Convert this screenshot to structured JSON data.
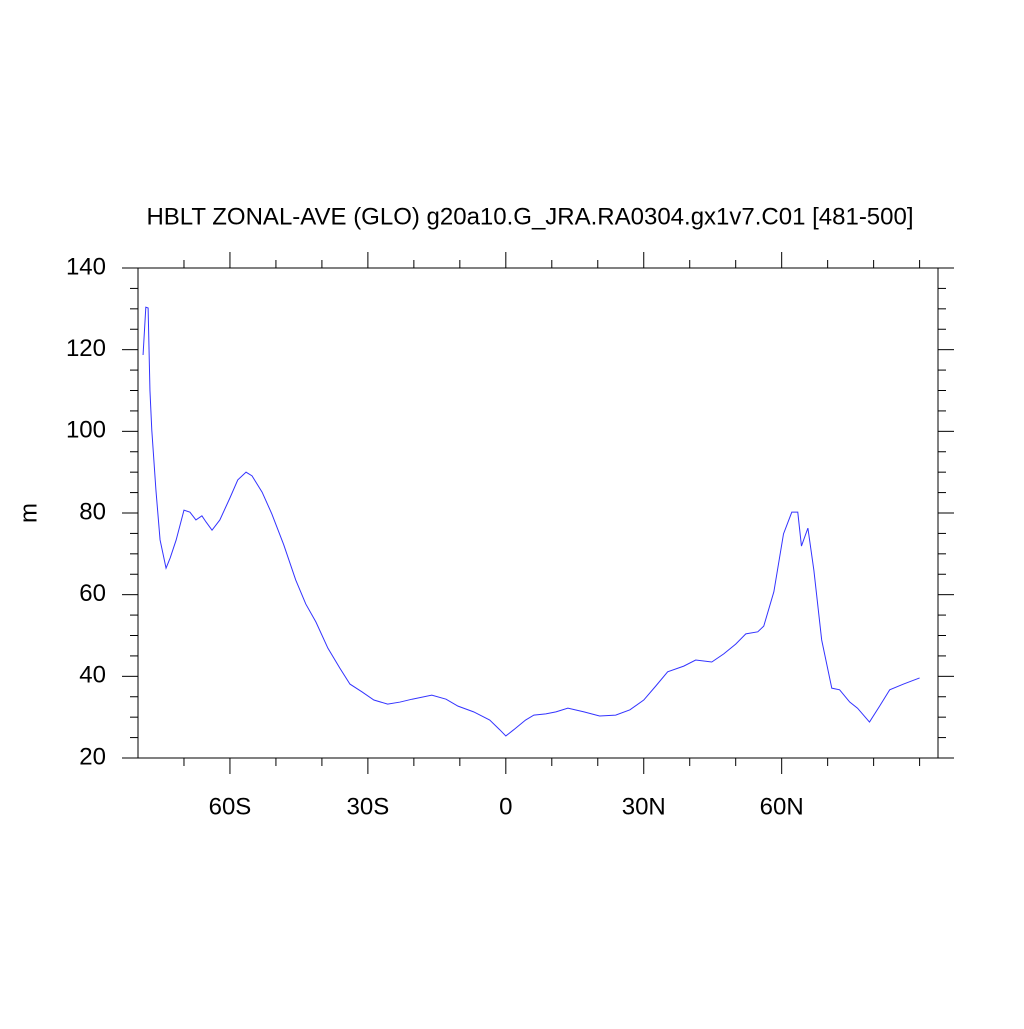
{
  "chart_data": {
    "type": "line",
    "title": "HBLT ZONAL-AVE (GLO) g20a10.G_JRA.RA0304.gx1v7.C01 [481-500]",
    "y_label": "m",
    "x": [
      -78.9,
      -78.3,
      -77.8,
      -77.4,
      -77,
      -76.1,
      -75.2,
      -73.9,
      -73,
      -71.7,
      -70,
      -68.7,
      -67.4,
      -66.1,
      -65.2,
      -63.9,
      -62.2,
      -60,
      -58.3,
      -56.5,
      -55.2,
      -53,
      -50.9,
      -48.3,
      -45.7,
      -43.5,
      -41.3,
      -38.7,
      -36.1,
      -33.9,
      -31.3,
      -28.7,
      -25.7,
      -23,
      -20.4,
      -16.1,
      -13,
      -10.4,
      -7,
      -3.5,
      -1.3,
      0,
      1.7,
      4.3,
      6.1,
      8.7,
      10.9,
      13.5,
      17,
      20.4,
      23.9,
      27,
      30,
      32.6,
      35.2,
      38.7,
      41.3,
      44.8,
      47.4,
      50,
      52.2,
      54.8,
      56.1,
      58.3,
      60.4,
      62.2,
      63.5,
      64.3,
      65.7,
      67,
      68.7,
      70.9,
      72.6,
      74.8,
      76.5,
      79.1,
      81.3,
      83.5,
      86.5,
      90
    ],
    "series": [
      {
        "color": "#3333ff",
        "values": [
          118.7,
          130.4,
          130.2,
          110,
          100.3,
          85.6,
          73.4,
          66.5,
          69,
          73.4,
          80.7,
          80.2,
          78.3,
          79.3,
          77.8,
          75.8,
          78.3,
          83.7,
          88.1,
          90,
          89.1,
          85.1,
          79.8,
          72.2,
          63.6,
          57.7,
          53.3,
          46.9,
          42,
          38.1,
          36.2,
          34.2,
          33.2,
          33.7,
          34.4,
          35.4,
          34.4,
          32.7,
          31.3,
          29.3,
          26.9,
          25.4,
          26.9,
          29.3,
          30.5,
          30.8,
          31.3,
          32.2,
          31.3,
          30.3,
          30.5,
          31.8,
          34.2,
          37.6,
          41.1,
          42.5,
          44,
          43.5,
          45.5,
          47.9,
          50.4,
          50.9,
          52.3,
          60.7,
          74.9,
          80.2,
          80.2,
          71.9,
          76.3,
          66,
          48.9,
          37.1,
          36.7,
          33.7,
          32.2,
          28.8,
          32.7,
          36.7,
          38.1,
          39.6
        ]
      }
    ],
    "xlim": [
      -80,
      94
    ],
    "xticks": [
      {
        "value": -60,
        "label": "60S"
      },
      {
        "value": -30,
        "label": "30S"
      },
      0,
      {
        "value": 30,
        "label": "30N"
      },
      {
        "value": 60,
        "label": "60N"
      }
    ],
    "xminorticks": [
      -70,
      -50,
      -40,
      -20,
      -10,
      10,
      20,
      40,
      50,
      70,
      80,
      90
    ],
    "ylim": [
      20,
      140
    ],
    "yticks": [
      20,
      40,
      60,
      80,
      100,
      120,
      140
    ],
    "yminorticks": [
      25,
      30,
      35,
      45,
      50,
      55,
      65,
      70,
      75,
      85,
      90,
      95,
      105,
      110,
      115,
      125,
      130,
      135
    ]
  }
}
